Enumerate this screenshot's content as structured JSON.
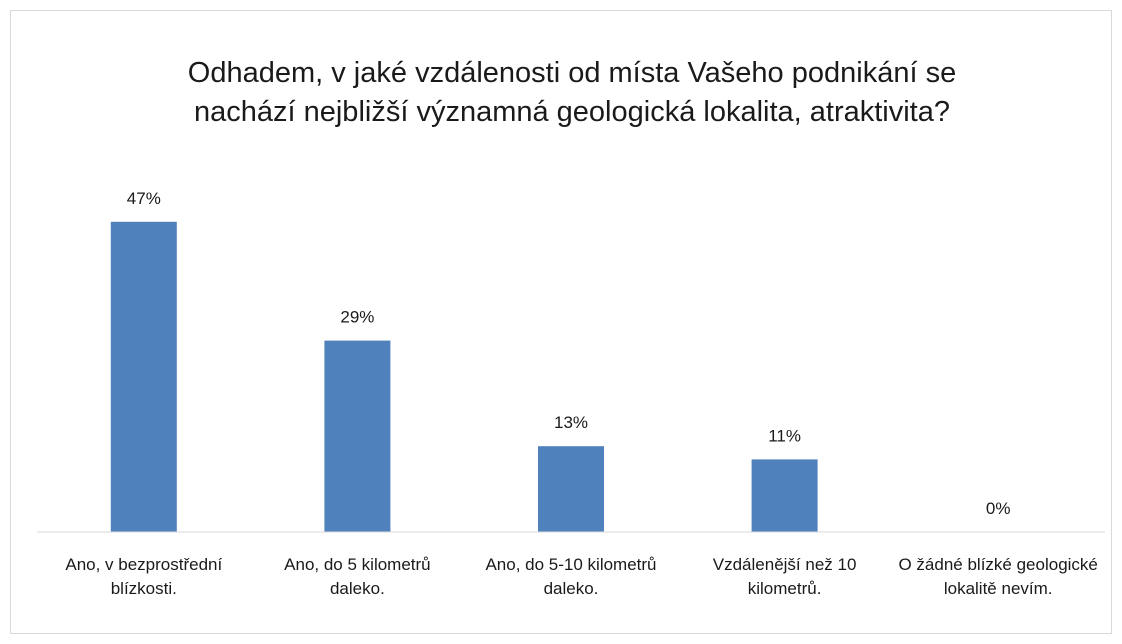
{
  "chart_data": {
    "type": "bar",
    "title": "Odhadem, v jaké vzdálenosti od místa Vašeho podnikání se nachází nejbližší významná geologická lokalita, atraktivita?",
    "categories": [
      "Ano, v bezprostřední blízkosti.",
      "Ano, do 5 kilometrů daleko.",
      "Ano, do 5-10 kilometrů daleko.",
      "Vzdálenější než 10 kilometrů.",
      "O žádné blízké geologické lokalitě nevím."
    ],
    "values": [
      47,
      29,
      13,
      11,
      0
    ],
    "value_labels": [
      "47%",
      "29%",
      "13%",
      "11%",
      "0%"
    ],
    "color": "#4f81bd",
    "ylim": [
      0,
      50
    ],
    "grid": false
  }
}
